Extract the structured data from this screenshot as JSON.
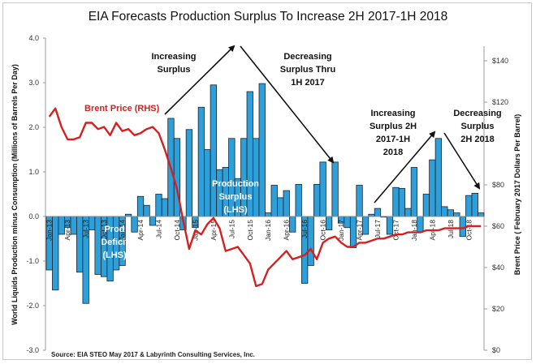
{
  "chart_data": {
    "type": "bar",
    "title": "EIA Forecasts Production Surplus To Increase 2H 2017-1H 2018",
    "ylabel": "World Liquids Production minus Consumption (Millions of Barrels Per Day)",
    "y2label": "Brent Price ( February 2017 Dollars  Per Barrel)",
    "ylim": [
      -3.0,
      4.0
    ],
    "y2lim": [
      0,
      160
    ],
    "yticks": [
      "4.0",
      "3.0",
      "2.0",
      "1.0",
      "0.0",
      "-1.0",
      "-2.0",
      "-3.0"
    ],
    "y2ticks": [
      "$140",
      "$120",
      "$80",
      "$60",
      "$40",
      "$20",
      "$0"
    ],
    "y2tick_values": [
      140,
      120,
      80,
      60,
      40,
      20,
      0
    ],
    "xtick_labels": [
      "Jan-13",
      "Apr-13",
      "Jul-13",
      "Oct-13",
      "Jan-14",
      "Apr-14",
      "Jul-14",
      "Oct-14",
      "Jan-15",
      "Apr-15",
      "Jul-15",
      "Oct-15",
      "Jan-16",
      "Apr-16",
      "Jul-16",
      "Oct-16",
      "Jan-17",
      "Apr-17",
      "Jul-17",
      "Oct-17",
      "Jan-18",
      "Apr-18",
      "Jul-18",
      "Oct-18"
    ],
    "grid": false,
    "series": [
      {
        "name": "Production Surplus (LHS)",
        "type": "bar",
        "axis": "left",
        "color": "#2e9fd8",
        "values": [
          -1.2,
          -1.65,
          -0.4,
          -0.25,
          -0.4,
          -1.25,
          -1.95,
          -0.3,
          -1.3,
          -1.35,
          -1.45,
          -1.2,
          -1.1,
          0.05,
          -0.35,
          0.45,
          0.25,
          -0.2,
          0.5,
          0.4,
          2.2,
          1.75,
          -0.3,
          1.95,
          -0.25,
          2.45,
          1.5,
          2.95,
          1.05,
          1.1,
          1.75,
          0.85,
          1.75,
          2.8,
          1.75,
          2.98,
          0.08,
          0.7,
          0.42,
          0.58,
          -0.35,
          0.72,
          -1.5,
          -1.1,
          0.72,
          1.22,
          -0.3,
          1.22,
          -0.15,
          -0.25,
          -0.7,
          0.7,
          -0.4,
          0.05,
          0.18,
          0.0,
          -0.4,
          0.65,
          0.63,
          0.18,
          1.1,
          -0.35,
          0.5,
          1.27,
          1.75,
          0.22,
          0.15,
          0.08,
          -0.45,
          0.47,
          0.52,
          0.08
        ]
      },
      {
        "name": "Brent Price (RHS)",
        "type": "line",
        "axis": "right",
        "color": "#d42020",
        "values": [
          113,
          117,
          108,
          102,
          102,
          103,
          110,
          110,
          107,
          108,
          104,
          110,
          106,
          107,
          104,
          105,
          107,
          108,
          105,
          97,
          88,
          78,
          63,
          49,
          58,
          56,
          61,
          64,
          59,
          48,
          49,
          50,
          46,
          42,
          31,
          32,
          39,
          42,
          45,
          48,
          44,
          45,
          46,
          49,
          44,
          52,
          54,
          55,
          52,
          50,
          50,
          52,
          52,
          53,
          54,
          54,
          55,
          56,
          56,
          57,
          57,
          57,
          58,
          58,
          58,
          59,
          59,
          59,
          59,
          60,
          60,
          60
        ]
      }
    ],
    "annotations": [
      {
        "lines": [
          "Increasing",
          "Surplus"
        ]
      },
      {
        "lines": [
          "Decreasing",
          "Surplus Thru",
          "1H 2017"
        ]
      },
      {
        "lines": [
          "Increasing",
          "Surplus 2H",
          "2017-1H",
          "2018"
        ]
      },
      {
        "lines": [
          "Decreasing",
          "Surplus",
          "2H 2018"
        ]
      }
    ],
    "in_chart_labels": {
      "brent": "Brent Price (RHS)",
      "deficit": [
        "Prod",
        "Deficit",
        "(LHS)"
      ],
      "surplus": [
        "Production",
        "Surplus",
        "(LHS)"
      ]
    },
    "source": "Source: EIA STEO May 2017 & Labyrinth Consulting Services, Inc."
  }
}
